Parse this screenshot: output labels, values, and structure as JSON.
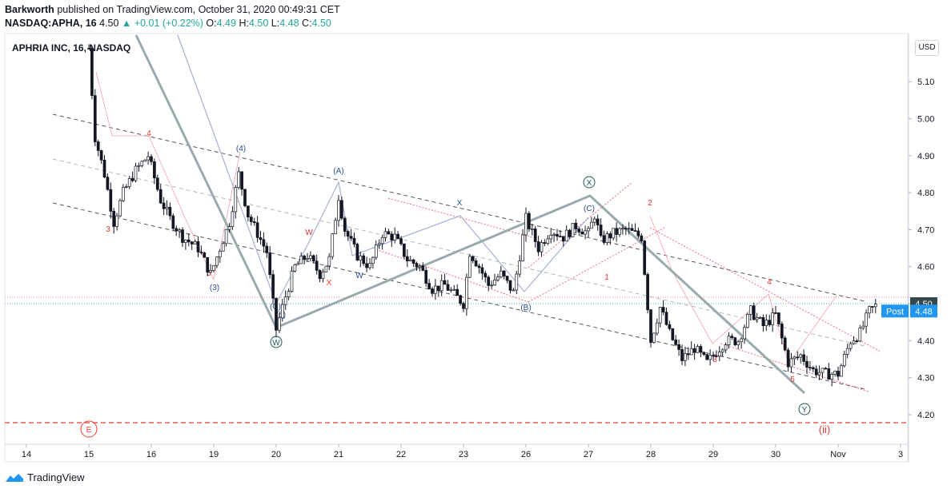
{
  "header": {
    "author": "Barkworth",
    "published_text": "published on TradingView.com, October 31, 2020 00:49:31 CET",
    "symbol": "NASDAQ:APHA, 16",
    "last": "4.50",
    "change": "▲ +0.01 (+0.22%)",
    "o_label": "O:",
    "o_value": "4.49",
    "h_label": "H:",
    "h_value": "4.50",
    "l_label": "L:",
    "l_value": "4.48",
    "c_label": "C:",
    "c_value": "4.50"
  },
  "chart_title": "APHRIA INC, 16, NASDAQ",
  "currency": "USD",
  "footer": {
    "brand": "TradingView"
  },
  "colors": {
    "candle": "#131722",
    "channel_dash": "#555555",
    "mid_dash": "#b0b0b0",
    "wxy": "#9aabae",
    "abc": "#a7b0d6",
    "red_channel": "#f06b7a",
    "red_label": "#e53935",
    "blue_label": "#2a4d8f",
    "dark_label": "#1c5957",
    "support": "#e53935",
    "price_tag": "#37474f",
    "post_tag": "#2196f3"
  },
  "chart_data": {
    "type": "candlestick",
    "title": "APHRIA INC, 16, NASDAQ",
    "ylabel": "USD",
    "ylim": [
      4.12,
      5.23
    ],
    "y_ticks": [
      "5.10",
      "5.00",
      "4.90",
      "4.80",
      "4.70",
      "4.60",
      "4.50",
      "4.40",
      "4.30",
      "4.20"
    ],
    "x_ticks": [
      "14",
      "15",
      "16",
      "19",
      "20",
      "21",
      "22",
      "23",
      "26",
      "27",
      "28",
      "29",
      "30",
      "Nov",
      "3"
    ],
    "price_tags": [
      {
        "label": "4.50",
        "value": 4.5
      },
      {
        "label": "Post",
        "value": 4.48,
        "price": "4.48"
      }
    ],
    "support_level": 4.16,
    "path_points": [
      {
        "x": 15.0,
        "y": 5.19
      },
      {
        "x": 15.1,
        "y": 4.95
      },
      {
        "x": 15.25,
        "y": 4.85
      },
      {
        "x": 15.4,
        "y": 4.72
      },
      {
        "x": 15.55,
        "y": 4.8
      },
      {
        "x": 15.75,
        "y": 4.86
      },
      {
        "x": 15.95,
        "y": 4.9
      },
      {
        "x": 16.15,
        "y": 4.78
      },
      {
        "x": 16.3,
        "y": 4.73
      },
      {
        "x": 16.5,
        "y": 4.68
      },
      {
        "x": 16.75,
        "y": 4.65
      },
      {
        "x": 16.95,
        "y": 4.58
      },
      {
        "x": 17.1,
        "y": 4.65
      },
      {
        "x": 17.25,
        "y": 4.72
      },
      {
        "x": 17.4,
        "y": 4.85
      },
      {
        "x": 17.55,
        "y": 4.74
      },
      {
        "x": 17.7,
        "y": 4.69
      },
      {
        "x": 17.85,
        "y": 4.64
      },
      {
        "x": 18.0,
        "y": 4.43
      },
      {
        "x": 18.15,
        "y": 4.52
      },
      {
        "x": 18.3,
        "y": 4.6
      },
      {
        "x": 18.5,
        "y": 4.63
      },
      {
        "x": 18.7,
        "y": 4.58
      },
      {
        "x": 18.85,
        "y": 4.62
      },
      {
        "x": 19.0,
        "y": 4.79
      },
      {
        "x": 19.1,
        "y": 4.7
      },
      {
        "x": 19.3,
        "y": 4.63
      },
      {
        "x": 19.5,
        "y": 4.6
      },
      {
        "x": 19.7,
        "y": 4.69
      },
      {
        "x": 19.9,
        "y": 4.68
      },
      {
        "x": 20.1,
        "y": 4.62
      },
      {
        "x": 20.3,
        "y": 4.6
      },
      {
        "x": 20.5,
        "y": 4.54
      },
      {
        "x": 20.7,
        "y": 4.55
      },
      {
        "x": 21.0,
        "y": 4.5
      },
      {
        "x": 21.1,
        "y": 4.64
      },
      {
        "x": 21.25,
        "y": 4.6
      },
      {
        "x": 21.4,
        "y": 4.55
      },
      {
        "x": 21.6,
        "y": 4.58
      },
      {
        "x": 21.8,
        "y": 4.53
      },
      {
        "x": 22.0,
        "y": 4.73
      },
      {
        "x": 22.2,
        "y": 4.65
      },
      {
        "x": 22.4,
        "y": 4.7
      },
      {
        "x": 22.6,
        "y": 4.68
      },
      {
        "x": 22.8,
        "y": 4.71
      },
      {
        "x": 23.0,
        "y": 4.69
      },
      {
        "x": 23.1,
        "y": 4.74
      },
      {
        "x": 23.2,
        "y": 4.67
      },
      {
        "x": 23.4,
        "y": 4.69
      },
      {
        "x": 23.6,
        "y": 4.7
      },
      {
        "x": 23.85,
        "y": 4.68
      },
      {
        "x": 24.0,
        "y": 4.4
      },
      {
        "x": 24.15,
        "y": 4.49
      },
      {
        "x": 24.3,
        "y": 4.42
      },
      {
        "x": 24.5,
        "y": 4.35
      },
      {
        "x": 24.7,
        "y": 4.38
      },
      {
        "x": 24.9,
        "y": 4.34
      },
      {
        "x": 25.0,
        "y": 4.36
      },
      {
        "x": 25.2,
        "y": 4.4
      },
      {
        "x": 25.4,
        "y": 4.4
      },
      {
        "x": 25.6,
        "y": 4.48
      },
      {
        "x": 25.8,
        "y": 4.44
      },
      {
        "x": 26.0,
        "y": 4.47
      },
      {
        "x": 26.2,
        "y": 4.34
      },
      {
        "x": 26.4,
        "y": 4.36
      },
      {
        "x": 26.6,
        "y": 4.32
      },
      {
        "x": 26.8,
        "y": 4.31
      },
      {
        "x": 27.0,
        "y": 4.31
      },
      {
        "x": 27.2,
        "y": 4.4
      },
      {
        "x": 27.35,
        "y": 4.42
      },
      {
        "x": 27.5,
        "y": 4.48
      },
      {
        "x": 27.65,
        "y": 4.5
      }
    ]
  }
}
